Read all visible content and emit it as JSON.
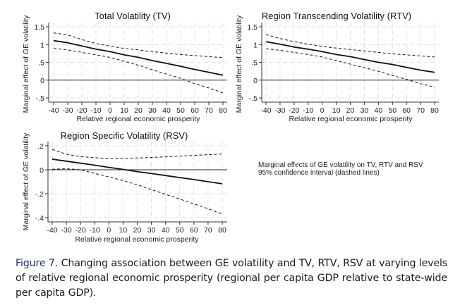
{
  "figure": {
    "caption_label": "Figure 7.",
    "caption_text": " Changing association between GE volatility and TV, RTV, RSV at varying levels of relative regional economic prosperity (regional per capita GDP relative to state-wide per capita GDP).",
    "note_lines": [
      "Marginal effects of GE volatility on TV, RTV and RSV",
      "95% confidence interval (dashed lines)"
    ],
    "colors": {
      "caption_label": "#1f2a78",
      "lines": "#111111",
      "grid": "#d9d9d9"
    }
  },
  "chart_data": [
    {
      "id": "tv",
      "type": "line",
      "title": "Total Volatility (TV)",
      "xlabel": "Relative regional economic prosperity",
      "ylabel": "Marginal effect of GE volatility",
      "x": [
        -40,
        -30,
        -20,
        -10,
        0,
        10,
        20,
        30,
        40,
        50,
        60,
        70,
        80
      ],
      "xticks": [
        -40,
        -30,
        -20,
        -10,
        0,
        10,
        20,
        30,
        40,
        50,
        60,
        70,
        80
      ],
      "xtick_labels": [
        "-40",
        "-30",
        "-20",
        "-10",
        "0",
        "10",
        "20",
        "30",
        "40",
        "50",
        "60",
        "70",
        "80"
      ],
      "yticks": [
        -0.5,
        0,
        0.5,
        1,
        1.5
      ],
      "ytick_labels": [
        "-.5",
        "0",
        ".5",
        "1",
        "1.5"
      ],
      "xlim": [
        -40,
        80
      ],
      "ylim": [
        -0.5,
        1.5
      ],
      "grid": true,
      "reference_line_y": 0,
      "series": [
        {
          "name": "Marginal effect",
          "style": "solid",
          "values": [
            1.11,
            1.05,
            0.96,
            0.87,
            0.8,
            0.71,
            0.64,
            0.55,
            0.47,
            0.39,
            0.3,
            0.22,
            0.14
          ]
        },
        {
          "name": "Upper 95% CI",
          "style": "dashed",
          "values": [
            1.33,
            1.27,
            1.14,
            1.03,
            0.96,
            0.89,
            0.85,
            0.8,
            0.76,
            0.72,
            0.69,
            0.66,
            0.63
          ]
        },
        {
          "name": "Lower 95% CI",
          "style": "dashed",
          "values": [
            0.89,
            0.85,
            0.78,
            0.71,
            0.64,
            0.53,
            0.42,
            0.29,
            0.17,
            0.05,
            -0.1,
            -0.22,
            -0.36
          ]
        }
      ]
    },
    {
      "id": "rtv",
      "type": "line",
      "title": "Region Transcending Volatility (RTV)",
      "xlabel": "Relative regional economic prosperity",
      "ylabel": "Marginal effect of GE volatility",
      "x": [
        -40,
        -30,
        -20,
        -10,
        0,
        10,
        20,
        30,
        40,
        50,
        60,
        70,
        80
      ],
      "xticks": [
        -40,
        -30,
        -20,
        -10,
        0,
        10,
        20,
        30,
        40,
        50,
        60,
        70,
        80
      ],
      "xtick_labels": [
        "-40",
        "-30",
        "-20",
        "-10",
        "0",
        "10",
        "20",
        "30",
        "40",
        "50",
        "60",
        "70",
        "80"
      ],
      "yticks": [
        -0.5,
        0,
        0.5,
        1,
        1.5
      ],
      "ytick_labels": [
        "-.5",
        "0",
        ".5",
        "1",
        "1.5"
      ],
      "xlim": [
        -40,
        80
      ],
      "ylim": [
        -0.5,
        1.5
      ],
      "grid": true,
      "reference_line_y": 0,
      "series": [
        {
          "name": "Marginal effect",
          "style": "solid",
          "values": [
            1.08,
            1.01,
            0.93,
            0.87,
            0.8,
            0.72,
            0.66,
            0.58,
            0.5,
            0.44,
            0.36,
            0.28,
            0.22
          ]
        },
        {
          "name": "Upper 95% CI",
          "style": "dashed",
          "values": [
            1.28,
            1.17,
            1.08,
            1.01,
            0.95,
            0.9,
            0.86,
            0.82,
            0.78,
            0.74,
            0.71,
            0.68,
            0.65
          ]
        },
        {
          "name": "Lower 95% CI",
          "style": "dashed",
          "values": [
            0.88,
            0.84,
            0.78,
            0.72,
            0.65,
            0.55,
            0.45,
            0.35,
            0.25,
            0.13,
            0.02,
            -0.1,
            -0.2
          ]
        }
      ]
    },
    {
      "id": "rsv",
      "type": "line",
      "title": "Region Specific Volatility (RSV)",
      "xlabel": "Relative regional economic prosperity",
      "ylabel": "Marginal effect of GE volatility",
      "x": [
        -40,
        -30,
        -20,
        -10,
        0,
        10,
        20,
        30,
        40,
        50,
        60,
        70,
        80
      ],
      "xticks": [
        -40,
        -30,
        -20,
        -10,
        0,
        10,
        20,
        30,
        40,
        50,
        60,
        70,
        80
      ],
      "xtick_labels": [
        "-40",
        "-30",
        "-20",
        "-10",
        "0",
        "10",
        "20",
        "30",
        "40",
        "50",
        "60",
        "70",
        "80"
      ],
      "yticks": [
        -0.4,
        -0.2,
        0,
        0.2
      ],
      "ytick_labels": [
        "-.4",
        "-.2",
        "0",
        ".2"
      ],
      "xlim": [
        -40,
        80
      ],
      "ylim": [
        -0.4,
        0.2
      ],
      "grid": true,
      "reference_line_y": 0,
      "series": [
        {
          "name": "Marginal effect",
          "style": "solid",
          "values": [
            0.088,
            0.072,
            0.055,
            0.038,
            0.02,
            0.003,
            -0.015,
            -0.032,
            -0.048,
            -0.065,
            -0.082,
            -0.1,
            -0.117
          ]
        },
        {
          "name": "Upper 95% CI",
          "style": "dashed",
          "values": [
            0.17,
            0.13,
            0.11,
            0.1,
            0.095,
            0.095,
            0.098,
            0.103,
            0.108,
            0.114,
            0.12,
            0.126,
            0.132
          ]
        },
        {
          "name": "Lower 95% CI",
          "style": "dashed",
          "values": [
            0.005,
            0.008,
            0.0,
            -0.03,
            -0.06,
            -0.09,
            -0.125,
            -0.165,
            -0.205,
            -0.245,
            -0.285,
            -0.325,
            -0.37
          ]
        }
      ]
    }
  ]
}
